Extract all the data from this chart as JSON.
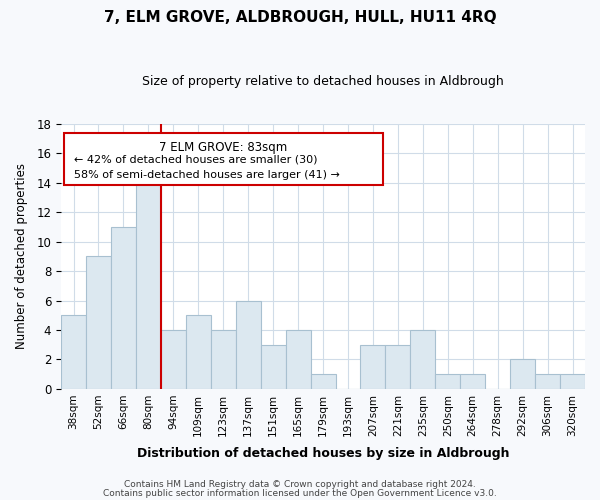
{
  "title": "7, ELM GROVE, ALDBROUGH, HULL, HU11 4RQ",
  "subtitle": "Size of property relative to detached houses in Aldbrough",
  "xlabel": "Distribution of detached houses by size in Aldbrough",
  "ylabel": "Number of detached properties",
  "bar_color": "#dce8f0",
  "bar_edge_color": "#a8c0d0",
  "marker_color": "#cc0000",
  "categories": [
    "38sqm",
    "52sqm",
    "66sqm",
    "80sqm",
    "94sqm",
    "109sqm",
    "123sqm",
    "137sqm",
    "151sqm",
    "165sqm",
    "179sqm",
    "193sqm",
    "207sqm",
    "221sqm",
    "235sqm",
    "250sqm",
    "264sqm",
    "278sqm",
    "292sqm",
    "306sqm",
    "320sqm"
  ],
  "values": [
    5,
    9,
    11,
    14,
    4,
    5,
    4,
    6,
    3,
    4,
    1,
    0,
    3,
    3,
    4,
    1,
    1,
    0,
    2,
    1,
    1
  ],
  "ylim": [
    0,
    18
  ],
  "yticks": [
    0,
    2,
    4,
    6,
    8,
    10,
    12,
    14,
    16,
    18
  ],
  "annotation_title": "7 ELM GROVE: 83sqm",
  "annotation_line1": "← 42% of detached houses are smaller (30)",
  "annotation_line2": "58% of semi-detached houses are larger (41) →",
  "footer1": "Contains HM Land Registry data © Crown copyright and database right 2024.",
  "footer2": "Contains public sector information licensed under the Open Government Licence v3.0.",
  "background_color": "#f7f9fc",
  "plot_bg_color": "#ffffff",
  "grid_color": "#d0dce8"
}
